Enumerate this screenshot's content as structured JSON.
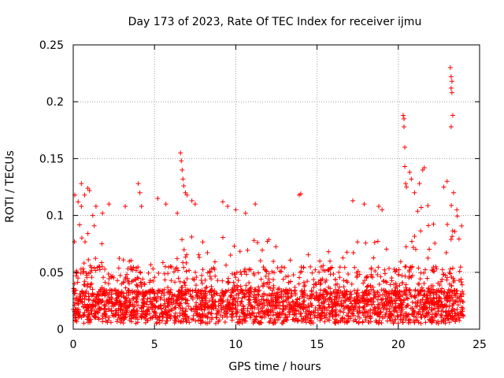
{
  "chart_data": {
    "type": "scatter",
    "title": "Day 173 of 2023, Rate Of TEC Index for receiver ijmu",
    "xlabel": "GPS time / hours",
    "ylabel": "ROTI / TECUs",
    "xlim": [
      0,
      25
    ],
    "ylim": [
      0,
      0.25
    ],
    "xticks": [
      0,
      5,
      10,
      15,
      20,
      25
    ],
    "yticks": [
      0,
      0.05,
      0.1,
      0.15,
      0.2,
      0.25
    ],
    "xtick_labels": [
      "0",
      "5",
      "10",
      "15",
      "20",
      "25"
    ],
    "ytick_labels": [
      "0",
      "0.05",
      "0.1",
      "0.15",
      "0.2",
      "0.25"
    ],
    "grid": true,
    "marker": "+",
    "color": "#ff0000",
    "series": [
      {
        "name": "ROTI",
        "points": [
          [
            0.1,
            0.118
          ],
          [
            0.3,
            0.112
          ],
          [
            0.5,
            0.128
          ],
          [
            0.5,
            0.108
          ],
          [
            0.7,
            0.118
          ],
          [
            0.9,
            0.124
          ],
          [
            1.0,
            0.122
          ],
          [
            1.2,
            0.1
          ],
          [
            1.4,
            0.108
          ],
          [
            1.8,
            0.102
          ],
          [
            2.2,
            0.11
          ],
          [
            3.2,
            0.108
          ],
          [
            4.0,
            0.128
          ],
          [
            4.1,
            0.12
          ],
          [
            4.2,
            0.108
          ],
          [
            5.2,
            0.115
          ],
          [
            5.7,
            0.11
          ],
          [
            6.4,
            0.102
          ],
          [
            6.6,
            0.155
          ],
          [
            6.65,
            0.148
          ],
          [
            6.7,
            0.14
          ],
          [
            6.75,
            0.132
          ],
          [
            6.8,
            0.126
          ],
          [
            6.9,
            0.12
          ],
          [
            7.0,
            0.118
          ],
          [
            7.3,
            0.113
          ],
          [
            7.5,
            0.11
          ],
          [
            9.2,
            0.112
          ],
          [
            9.5,
            0.108
          ],
          [
            10.0,
            0.105
          ],
          [
            10.6,
            0.102
          ],
          [
            11.2,
            0.11
          ],
          [
            13.9,
            0.118
          ],
          [
            14.0,
            0.119
          ],
          [
            17.2,
            0.113
          ],
          [
            17.9,
            0.11
          ],
          [
            18.8,
            0.108
          ],
          [
            19.0,
            0.105
          ],
          [
            20.3,
            0.188
          ],
          [
            20.35,
            0.185
          ],
          [
            20.35,
            0.178
          ],
          [
            20.4,
            0.16
          ],
          [
            20.4,
            0.143
          ],
          [
            20.45,
            0.128
          ],
          [
            20.5,
            0.125
          ],
          [
            20.7,
            0.138
          ],
          [
            20.8,
            0.132
          ],
          [
            21.0,
            0.12
          ],
          [
            21.3,
            0.128
          ],
          [
            21.5,
            0.14
          ],
          [
            21.6,
            0.142
          ],
          [
            22.8,
            0.125
          ],
          [
            23.0,
            0.13
          ],
          [
            23.2,
            0.23
          ],
          [
            23.25,
            0.222
          ],
          [
            23.3,
            0.218
          ],
          [
            23.25,
            0.212
          ],
          [
            23.3,
            0.208
          ],
          [
            23.35,
            0.188
          ],
          [
            23.25,
            0.178
          ],
          [
            23.4,
            0.12
          ],
          [
            23.6,
            0.105
          ]
        ]
      }
    ]
  }
}
